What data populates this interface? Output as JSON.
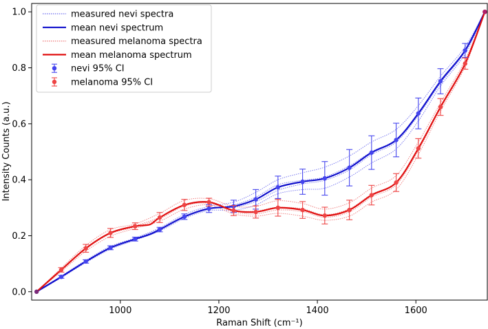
{
  "chart_data": {
    "type": "line",
    "xlabel": "Raman Shift (cm⁻¹)",
    "ylabel": "Intensity Counts (a.u.)",
    "xlim": [
      820,
      1745
    ],
    "ylim": [
      -0.03,
      1.03
    ],
    "xticks": [
      1000,
      1200,
      1400,
      1600
    ],
    "xtick_labels": [
      "1000",
      "1200",
      "1400",
      "1600"
    ],
    "yticks": [
      0.0,
      0.2,
      0.4,
      0.6,
      0.8,
      1.0
    ],
    "ytick_labels": [
      "0.0",
      "0.2",
      "0.4",
      "0.6",
      "0.8",
      "1.0"
    ],
    "legend_position": "top-left",
    "colors": {
      "nevi": "#1010cc",
      "nevi_light": "#6b6bee",
      "nevi_ci": "#4444ee",
      "melanoma": "#e01010",
      "melanoma_light": "#ee7777",
      "melanoma_ci": "#ee4444"
    },
    "legend": [
      {
        "label": "measured nevi spectra",
        "style": "dotted",
        "color": "#6b6bee"
      },
      {
        "label": "mean nevi spectrum",
        "style": "solid",
        "color": "#1010cc"
      },
      {
        "label": "measured melanoma spectra",
        "style": "dotted",
        "color": "#ee7777"
      },
      {
        "label": "mean melanoma spectrum",
        "style": "solid",
        "color": "#e01010"
      },
      {
        "label": "nevi 95% CI",
        "style": "errorbar",
        "color": "#4444ee"
      },
      {
        "label": "melanoma 95% CI",
        "style": "errorbar",
        "color": "#ee4444"
      }
    ],
    "series": [
      {
        "name": "mean nevi spectrum",
        "x": [
          830,
          880,
          930,
          980,
          1030,
          1060,
          1080,
          1130,
          1180,
          1230,
          1275,
          1320,
          1370,
          1415,
          1465,
          1510,
          1560,
          1605,
          1650,
          1700,
          1740
        ],
        "y": [
          0.0,
          0.053,
          0.108,
          0.157,
          0.188,
          0.205,
          0.222,
          0.268,
          0.297,
          0.305,
          0.33,
          0.373,
          0.393,
          0.405,
          0.443,
          0.497,
          0.542,
          0.637,
          0.752,
          0.862,
          1.0
        ]
      },
      {
        "name": "mean melanoma spectrum",
        "x": [
          830,
          880,
          930,
          980,
          1030,
          1060,
          1080,
          1130,
          1180,
          1230,
          1275,
          1320,
          1370,
          1415,
          1465,
          1510,
          1560,
          1605,
          1650,
          1700,
          1740
        ],
        "y": [
          0.0,
          0.078,
          0.155,
          0.21,
          0.234,
          0.24,
          0.265,
          0.31,
          0.32,
          0.29,
          0.285,
          0.3,
          0.292,
          0.272,
          0.292,
          0.345,
          0.39,
          0.512,
          0.66,
          0.815,
          1.0
        ]
      }
    ],
    "ci": [
      {
        "name": "nevi 95% CI",
        "x": [
          880,
          930,
          980,
          1030,
          1080,
          1130,
          1180,
          1230,
          1275,
          1320,
          1370,
          1415,
          1465,
          1510,
          1560,
          1605,
          1650,
          1700,
          1740
        ],
        "y": [
          0.053,
          0.108,
          0.157,
          0.188,
          0.222,
          0.268,
          0.297,
          0.305,
          0.33,
          0.373,
          0.393,
          0.405,
          0.443,
          0.497,
          0.542,
          0.637,
          0.752,
          0.862,
          1.0
        ],
        "err": [
          0.005,
          0.006,
          0.007,
          0.007,
          0.008,
          0.01,
          0.014,
          0.022,
          0.035,
          0.04,
          0.045,
          0.06,
          0.065,
          0.06,
          0.06,
          0.055,
          0.045,
          0.025,
          0.0
        ]
      },
      {
        "name": "melanoma 95% CI",
        "x": [
          880,
          930,
          980,
          1030,
          1080,
          1130,
          1180,
          1230,
          1275,
          1320,
          1370,
          1415,
          1465,
          1510,
          1560,
          1605,
          1650,
          1700,
          1740
        ],
        "y": [
          0.078,
          0.155,
          0.21,
          0.234,
          0.265,
          0.31,
          0.32,
          0.29,
          0.285,
          0.3,
          0.292,
          0.272,
          0.292,
          0.345,
          0.39,
          0.512,
          0.66,
          0.815,
          1.0
        ],
        "err": [
          0.008,
          0.014,
          0.016,
          0.012,
          0.018,
          0.02,
          0.014,
          0.018,
          0.022,
          0.03,
          0.03,
          0.03,
          0.035,
          0.035,
          0.032,
          0.035,
          0.03,
          0.02,
          0.0
        ]
      }
    ],
    "measured_nevi": [
      {
        "name": "measured nevi spectrum 1",
        "x": [
          830,
          880,
          930,
          980,
          1030,
          1080,
          1130,
          1180,
          1230,
          1275,
          1320,
          1370,
          1415,
          1465,
          1510,
          1560,
          1605,
          1650,
          1700,
          1740
        ],
        "y": [
          0.0,
          0.05,
          0.104,
          0.152,
          0.184,
          0.217,
          0.262,
          0.29,
          0.291,
          0.31,
          0.35,
          0.365,
          0.37,
          0.41,
          0.46,
          0.51,
          0.61,
          0.735,
          0.85,
          1.0
        ]
      },
      {
        "name": "measured nevi spectrum 2",
        "x": [
          830,
          880,
          930,
          980,
          1030,
          1080,
          1130,
          1180,
          1230,
          1275,
          1320,
          1370,
          1415,
          1465,
          1510,
          1560,
          1605,
          1650,
          1700,
          1740
        ],
        "y": [
          0.0,
          0.056,
          0.112,
          0.162,
          0.192,
          0.228,
          0.276,
          0.305,
          0.32,
          0.355,
          0.4,
          0.425,
          0.445,
          0.485,
          0.535,
          0.58,
          0.665,
          0.77,
          0.875,
          1.0
        ]
      },
      {
        "name": "measured nevi spectrum 3",
        "x": [
          830,
          880,
          930,
          980,
          1030,
          1080,
          1130,
          1180,
          1230,
          1275,
          1320,
          1370,
          1415,
          1465,
          1510,
          1560,
          1605,
          1650,
          1700,
          1740
        ],
        "y": [
          0.0,
          0.052,
          0.107,
          0.156,
          0.187,
          0.221,
          0.267,
          0.296,
          0.31,
          0.338,
          0.382,
          0.398,
          0.41,
          0.45,
          0.5,
          0.545,
          0.64,
          0.755,
          0.865,
          1.0
        ]
      },
      {
        "name": "measured nevi spectrum 4",
        "x": [
          830,
          880,
          930,
          980,
          1030,
          1080,
          1130,
          1180,
          1230,
          1275,
          1320,
          1370,
          1415,
          1465,
          1510,
          1560,
          1605,
          1650,
          1700,
          1740
        ],
        "y": [
          0.0,
          0.054,
          0.11,
          0.158,
          0.19,
          0.224,
          0.27,
          0.299,
          0.302,
          0.322,
          0.362,
          0.385,
          0.398,
          0.435,
          0.49,
          0.535,
          0.63,
          0.745,
          0.858,
          1.0
        ]
      }
    ],
    "measured_melanoma": [
      {
        "name": "measured melanoma spectrum 1",
        "x": [
          830,
          880,
          930,
          980,
          1030,
          1080,
          1130,
          1180,
          1230,
          1275,
          1320,
          1370,
          1415,
          1465,
          1510,
          1560,
          1605,
          1650,
          1700,
          1740
        ],
        "y": [
          0.0,
          0.072,
          0.145,
          0.198,
          0.226,
          0.252,
          0.295,
          0.31,
          0.278,
          0.27,
          0.28,
          0.27,
          0.255,
          0.27,
          0.32,
          0.365,
          0.49,
          0.645,
          0.805,
          1.0
        ]
      },
      {
        "name": "measured melanoma spectrum 2",
        "x": [
          830,
          880,
          930,
          980,
          1030,
          1080,
          1130,
          1180,
          1230,
          1275,
          1320,
          1370,
          1415,
          1465,
          1510,
          1560,
          1605,
          1650,
          1700,
          1740
        ],
        "y": [
          0.0,
          0.084,
          0.165,
          0.222,
          0.242,
          0.28,
          0.326,
          0.332,
          0.305,
          0.305,
          0.325,
          0.315,
          0.295,
          0.318,
          0.37,
          0.415,
          0.535,
          0.675,
          0.828,
          1.0
        ]
      },
      {
        "name": "measured melanoma spectrum 3",
        "x": [
          830,
          880,
          930,
          980,
          1030,
          1080,
          1130,
          1180,
          1230,
          1275,
          1320,
          1370,
          1415,
          1465,
          1510,
          1560,
          1605,
          1650,
          1700,
          1740
        ],
        "y": [
          0.0,
          0.079,
          0.156,
          0.211,
          0.235,
          0.266,
          0.311,
          0.322,
          0.292,
          0.288,
          0.302,
          0.296,
          0.275,
          0.296,
          0.348,
          0.392,
          0.515,
          0.662,
          0.817,
          1.0
        ]
      },
      {
        "name": "measured melanoma spectrum 4",
        "x": [
          830,
          880,
          930,
          980,
          1030,
          1080,
          1130,
          1180,
          1230,
          1275,
          1320,
          1370,
          1415,
          1465,
          1510,
          1560,
          1605,
          1650,
          1700,
          1740
        ],
        "y": [
          0.0,
          0.076,
          0.152,
          0.207,
          0.231,
          0.261,
          0.306,
          0.316,
          0.285,
          0.278,
          0.292,
          0.286,
          0.266,
          0.285,
          0.338,
          0.382,
          0.505,
          0.655,
          0.81,
          1.0
        ]
      }
    ]
  }
}
